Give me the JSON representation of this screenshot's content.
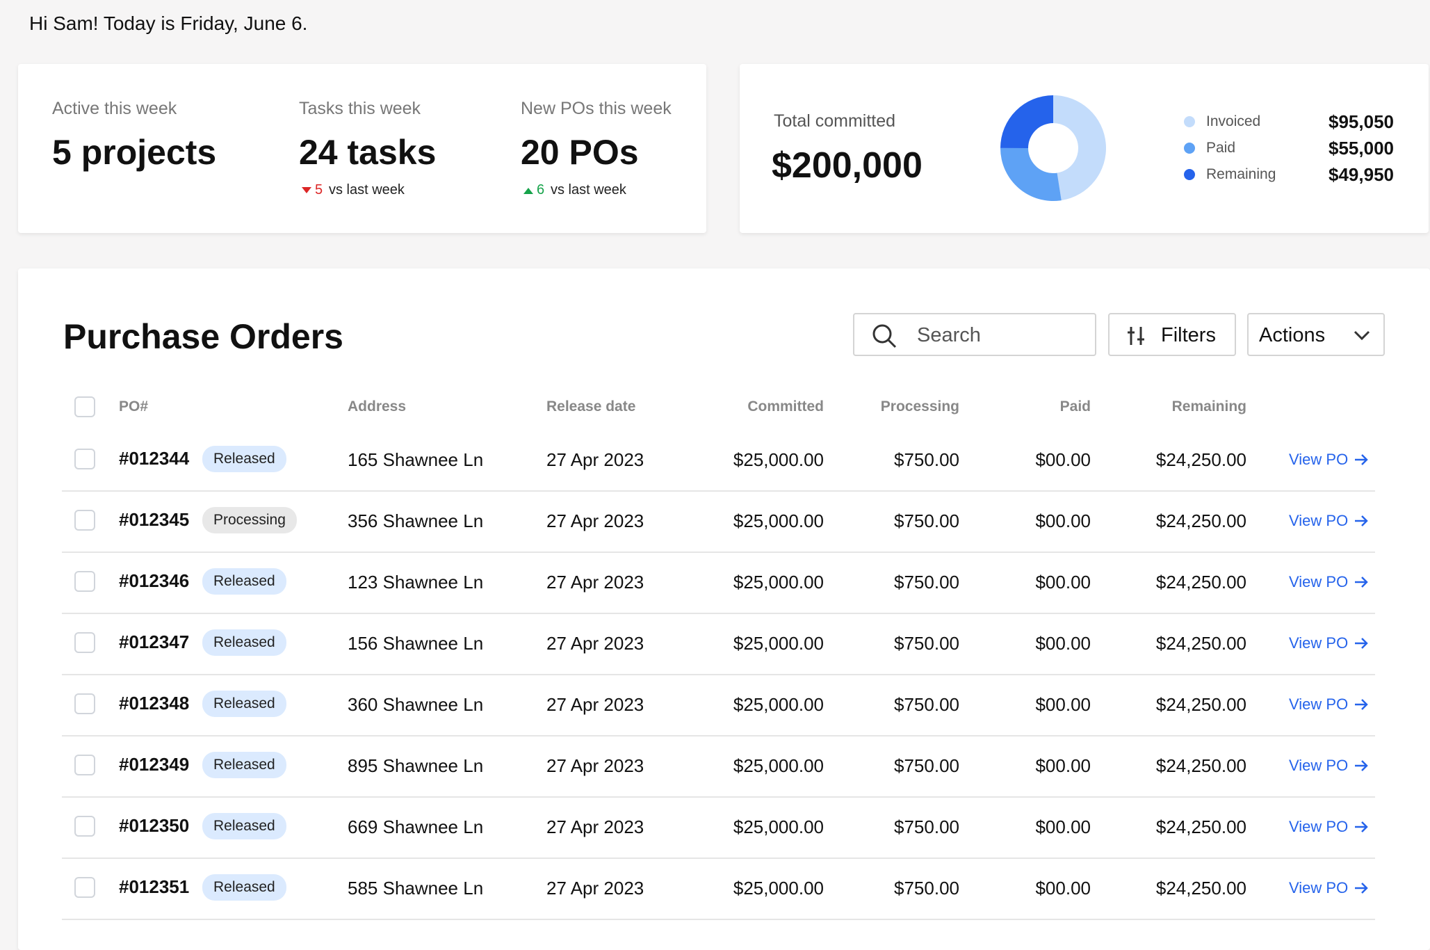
{
  "greeting": "Hi Sam! Today is Friday, June 6.",
  "stats": [
    {
      "label": "Active this week",
      "value": "5 projects"
    },
    {
      "label": "Tasks this week",
      "value": "24 tasks",
      "delta": "5",
      "delta_text": "vs last week",
      "trend": "down"
    },
    {
      "label": "New POs this week",
      "value": "20 POs",
      "delta": "6",
      "delta_text": "vs last week",
      "trend": "up"
    }
  ],
  "total": {
    "label": "Total committed",
    "value": "$200,000"
  },
  "chart_data": {
    "type": "donut",
    "categories": [
      "Invoiced",
      "Paid",
      "Remaining"
    ],
    "values": [
      95050,
      55000,
      49950
    ],
    "value_labels": [
      "$95,050",
      "$55,000",
      "$49,950"
    ],
    "colors": [
      "#c3dcfb",
      "#5ea2f5",
      "#2563eb"
    ]
  },
  "orders": {
    "title": "Purchase Orders",
    "search": "Search",
    "filters": "Filters",
    "actions": "Actions",
    "columns": [
      "PO#",
      "Address",
      "Release date",
      "Committed",
      "Processing",
      "Paid",
      "Remaining"
    ],
    "rows": [
      [
        "#012344",
        "Released",
        "165 Shawnee Ln",
        "27 Apr 2023",
        "$25,000.00",
        "$750.00",
        "$00.00",
        "$24,250.00",
        "View PO"
      ],
      [
        "#012345",
        "Processing",
        "356 Shawnee Ln",
        "27 Apr 2023",
        "$25,000.00",
        "$750.00",
        "$00.00",
        "$24,250.00",
        "View PO"
      ],
      [
        "#012346",
        "Released",
        "123 Shawnee Ln",
        "27 Apr 2023",
        "$25,000.00",
        "$750.00",
        "$00.00",
        "$24,250.00",
        "View PO"
      ],
      [
        "#012347",
        "Released",
        "156 Shawnee Ln",
        "27 Apr 2023",
        "$25,000.00",
        "$750.00",
        "$00.00",
        "$24,250.00",
        "View PO"
      ],
      [
        "#012348",
        "Released",
        "360 Shawnee Ln",
        "27 Apr 2023",
        "$25,000.00",
        "$750.00",
        "$00.00",
        "$24,250.00",
        "View PO"
      ],
      [
        "#012349",
        "Released",
        "895 Shawnee Ln",
        "27 Apr 2023",
        "$25,000.00",
        "$750.00",
        "$00.00",
        "$24,250.00",
        "View PO"
      ],
      [
        "#012350",
        "Released",
        "669 Shawnee Ln",
        "27 Apr 2023",
        "$25,000.00",
        "$750.00",
        "$00.00",
        "$24,250.00",
        "View PO"
      ],
      [
        "#012351",
        "Released",
        "585 Shawnee Ln",
        "27 Apr 2023",
        "$25,000.00",
        "$750.00",
        "$00.00",
        "$24,250.00",
        "View PO"
      ]
    ]
  }
}
